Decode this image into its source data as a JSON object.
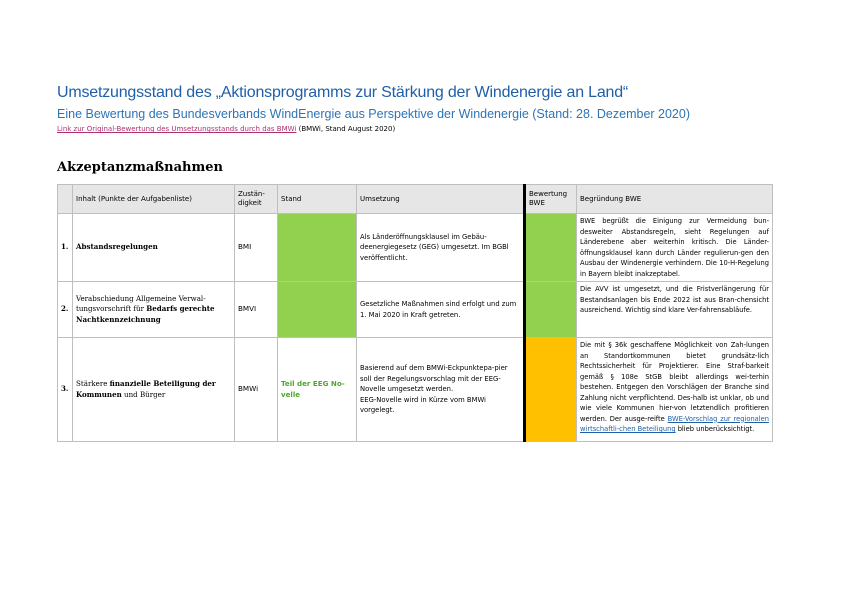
{
  "header": {
    "title": "Umsetzungsstand des „Aktionsprogramms zur Stärkung der Windenergie an Land“",
    "subtitle": "Eine Bewertung des Bundesverbands WindEnergie aus Perspektive der Windenergie (Stand: 28. Dezember 2020)",
    "link_text": "Link zur Original-Bewertung des Umsetzungsstands durch das BMWi",
    "link_suffix": " (BMWi, Stand August 2020)"
  },
  "section_title": "Akzeptanzmaßnahmen",
  "table": {
    "headers": {
      "num": "",
      "inhalt": "Inhalt (Punkte der Aufgabenliste)",
      "zust": "Zustän-digkeit",
      "stand": "Stand",
      "umsetzung": "Umsetzung",
      "bewertung": "Bewertung BWE",
      "begruendung": "Begründung BWE"
    },
    "rows": [
      {
        "num": "1.",
        "inhalt_bold": "Abstandsregelungen",
        "zust": "BMI",
        "stand": "",
        "stand_color": "#92d050",
        "umsetzung": "Als Länderöffnungsklausel im Gebäu-deenergiegesetz (GEG) umgesetzt. Im BGBl veröffentlicht.",
        "bewertung_color": "#92d050",
        "begruendung": "BWE begrüßt die Einigung zur Vermeidung bun-desweiter Abstandsregeln, sieht Regelungen auf Länderebene aber weiterhin kritisch. Die Länder-öffnungsklausel kann durch Länder regulierun-gen den Ausbau der Windenergie verhindern. Die 10-H-Regelung in Bayern bleibt inakzeptabel."
      },
      {
        "num": "2.",
        "inhalt_pre": "Verabschiedung Allgemeine Verwal-tungsvorschrift für ",
        "inhalt_bold": "Bedarfs gerechte Nachtkennzeichnung",
        "zust": "BMVI",
        "stand": "",
        "stand_color": "#92d050",
        "umsetzung": "Gesetzliche Maßnahmen sind erfolgt und zum 1. Mai 2020 in Kraft getreten.",
        "bewertung_color": "#92d050",
        "begruendung": "Die AVV ist umgesetzt, und die Fristverlängerung für Bestandsanlagen bis Ende 2022 ist aus Bran-chensicht ausreichend. Wichtig sind klare Ver-fahrensabläufe."
      },
      {
        "num": "3.",
        "inhalt_pre": "Stärkere ",
        "inhalt_bold": "finanzielle Beteiligung der Kommunen",
        "inhalt_post": " und Bürger",
        "zust": "BMWi",
        "stand": "Teil der EEG No-velle",
        "stand_color": "#ffffff",
        "umsetzung": "Basierend auf dem BMWi-Eckpunktepa-pier soll der Regelungsvorschlag mit der EEG-Novelle umgesetzt werden.",
        "umsetzung2": "EEG-Novelle wird in Kürze vom BMWi vorgelegt.",
        "bewertung_color": "#ffc000",
        "begruendung": "Die mit § 36k geschaffene Möglichkeit von Zah-lungen an Standortkommunen bietet grundsätz-lich Rechtssicherheit für Projektierer. Eine Straf-barkeit gemäß § 108e StGB bleibt allerdings wei-terhin bestehen. Entgegen den Vorschlägen der Branche sind Zahlung nicht verpflichtend. Des-halb ist unklar, ob und wie viele Kommunen hier-von letztendlich profitieren werden. Der ausge-reifte ",
        "begruendung_link": "BWE-Vorschlag zur regionalen wirtschaftli-chen Beteiligung",
        "begruendung_post": " blieb unberücksichtigt."
      }
    ]
  }
}
